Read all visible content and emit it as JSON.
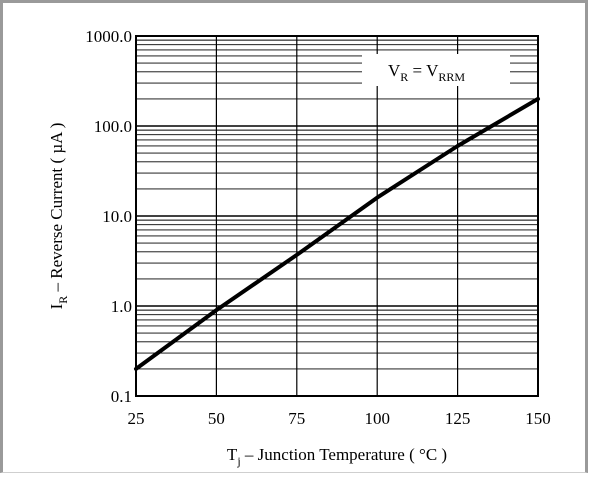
{
  "chart_data": {
    "type": "line",
    "x_axis": {
      "label_main": "T",
      "label_sub": "j",
      "label_rest": " – Junction Temperature ( °C )",
      "range": [
        25,
        150
      ],
      "ticks": [
        25,
        50,
        75,
        100,
        125,
        150
      ],
      "tick_labels": [
        "25",
        "50",
        "75",
        "100",
        "125",
        "150"
      ]
    },
    "y_axis": {
      "label_main": "I",
      "label_sub": "R",
      "label_rest": " – Reverse Current ( µA )",
      "scale": "log",
      "range": [
        0.1,
        1000
      ],
      "ticks": [
        0.1,
        1,
        10,
        100,
        1000
      ],
      "tick_labels": [
        "0.1",
        "1.0",
        "10.0",
        "100.0",
        "1000.0"
      ]
    },
    "grid": true,
    "annotation": {
      "v1": "V",
      "s1": "R",
      "eq": " = V",
      "s2": "RRM"
    },
    "series": [
      {
        "x": [
          25,
          50,
          75,
          100,
          125,
          150
        ],
        "y": [
          0.2,
          0.9,
          3.7,
          16,
          60,
          200
        ]
      }
    ]
  }
}
